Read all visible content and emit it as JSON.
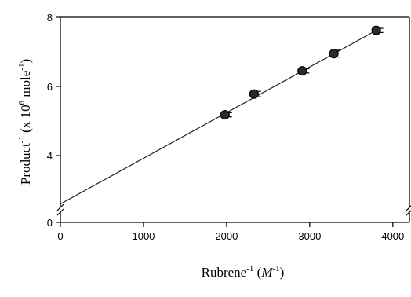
{
  "chart_data": {
    "type": "scatter",
    "xlabel": "Rubrene",
    "xlabel_sup": "-1",
    "xlabel_unit_open": " (",
    "xlabel_unit": "M",
    "xlabel_unit_sup": "-1",
    "xlabel_unit_close": ")",
    "ylabel": "Product",
    "ylabel_sup": "-1",
    "ylabel_unit_open": " (x 10",
    "ylabel_unit_sup": "6",
    "ylabel_unit_mid": " mole",
    "ylabel_unit_sup2": "-1",
    "ylabel_unit_close": ")",
    "xlim": [
      0,
      4200
    ],
    "ylim": [
      0,
      8
    ],
    "axis_break_y": [
      0,
      2
    ],
    "xticks": [
      0,
      1000,
      2000,
      3000,
      4000
    ],
    "xtick_labels": [
      "0",
      "1000",
      "2000",
      "3000",
      "4000"
    ],
    "yticks": [
      0,
      4,
      6,
      8
    ],
    "ytick_labels": [
      "0",
      "4",
      "6",
      "8"
    ],
    "grid": false,
    "series": [
      {
        "marker": "circle",
        "color": "#2b2b2b",
        "x": [
          1980,
          2330,
          2910,
          3290,
          3800
        ],
        "y": [
          5.18,
          5.78,
          6.45,
          6.95,
          7.62
        ],
        "yerr": [
          0.06,
          0.08,
          0.06,
          0.1,
          0.06
        ]
      }
    ],
    "fit_line": {
      "x": [
        0,
        3800
      ],
      "y": [
        2.6,
        7.62
      ],
      "color": "#222222"
    }
  }
}
